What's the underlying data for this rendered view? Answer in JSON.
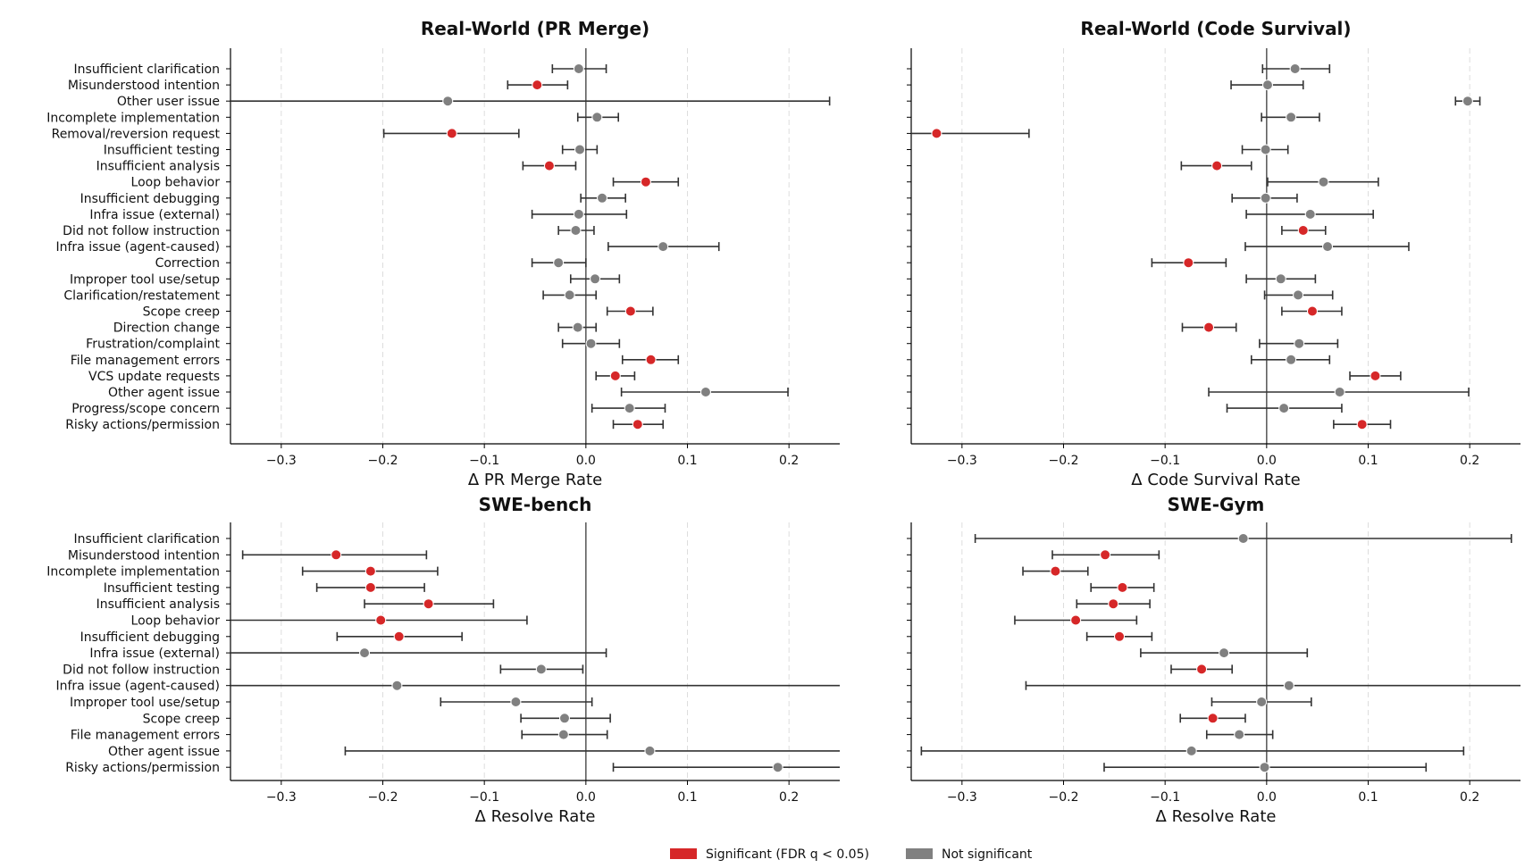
{
  "figure": {
    "colors": {
      "significant": "#d62728",
      "not_significant": "#808080",
      "axis": "#000000",
      "errbar": "#333333",
      "grid": "#dddddd"
    }
  },
  "legend": {
    "entries": [
      {
        "label": "Significant (FDR q < 0.05)",
        "color": "#d62728"
      },
      {
        "label": "Not significant",
        "color": "#808080"
      }
    ],
    "placement": "bottom-center"
  },
  "chart_data": [
    {
      "type": "scatter",
      "title": "Real-World (PR Merge)",
      "xlabel": "Δ PR Merge Rate",
      "xlim": [
        -0.35,
        0.25
      ],
      "xticks": [
        -0.3,
        -0.2,
        -0.1,
        0.0,
        0.1,
        0.2
      ],
      "xtick_labels": [
        "−0.3",
        "−0.2",
        "−0.1",
        "0.0",
        "0.1",
        "0.2"
      ],
      "grid": "vertical dashed",
      "categories": [
        "Insufficient clarification",
        "Misunderstood intention",
        "Other user issue",
        "Incomplete implementation",
        "Removal/reversion request",
        "Insufficient testing",
        "Insufficient analysis",
        "Loop behavior",
        "Insufficient debugging",
        "Infra issue (external)",
        "Did not follow instruction",
        "Infra issue (agent-caused)",
        "Correction",
        "Improper tool use/setup",
        "Clarification/restatement",
        "Scope creep",
        "Direction change",
        "Frustration/complaint",
        "File management errors",
        "VCS update requests",
        "Other agent issue",
        "Progress/scope concern",
        "Risky actions/permission"
      ],
      "values": [
        -0.007,
        -0.048,
        -0.136,
        0.011,
        -0.132,
        -0.006,
        -0.036,
        0.059,
        0.016,
        -0.007,
        -0.01,
        0.076,
        -0.027,
        0.009,
        -0.016,
        0.044,
        -0.008,
        0.005,
        0.064,
        0.029,
        0.118,
        0.043,
        0.051
      ],
      "ci_low": [
        -0.033,
        -0.077,
        -0.36,
        -0.008,
        -0.199,
        -0.023,
        -0.062,
        0.027,
        -0.005,
        -0.053,
        -0.027,
        0.022,
        -0.053,
        -0.015,
        -0.042,
        0.021,
        -0.027,
        -0.023,
        0.036,
        0.01,
        0.035,
        0.006,
        0.027
      ],
      "ci_high": [
        0.02,
        -0.018,
        0.24,
        0.032,
        -0.066,
        0.011,
        -0.01,
        0.091,
        0.039,
        0.04,
        0.008,
        0.131,
        0.0,
        0.033,
        0.01,
        0.066,
        0.01,
        0.033,
        0.091,
        0.048,
        0.199,
        0.078,
        0.076
      ],
      "significant": [
        false,
        true,
        false,
        false,
        true,
        false,
        true,
        true,
        false,
        false,
        false,
        false,
        false,
        false,
        false,
        true,
        false,
        false,
        true,
        true,
        false,
        false,
        true
      ]
    },
    {
      "type": "scatter",
      "title": "Real-World (Code Survival)",
      "xlabel": "Δ Code Survival Rate",
      "xlim": [
        -0.35,
        0.25
      ],
      "xticks": [
        -0.3,
        -0.2,
        -0.1,
        0.0,
        0.1,
        0.2
      ],
      "xtick_labels": [
        "−0.3",
        "−0.2",
        "−0.1",
        "0.0",
        "0.1",
        "0.2"
      ],
      "grid": "vertical dashed",
      "categories": [
        "Insufficient clarification",
        "Misunderstood intention",
        "Other user issue",
        "Incomplete implementation",
        "Removal/reversion request",
        "Insufficient testing",
        "Insufficient analysis",
        "Loop behavior",
        "Insufficient debugging",
        "Infra issue (external)",
        "Did not follow instruction",
        "Infra issue (agent-caused)",
        "Correction",
        "Improper tool use/setup",
        "Clarification/restatement",
        "Scope creep",
        "Direction change",
        "Frustration/complaint",
        "File management errors",
        "VCS update requests",
        "Other agent issue",
        "Progress/scope concern",
        "Risky actions/permission"
      ],
      "values": [
        0.028,
        0.001,
        0.198,
        0.024,
        -0.325,
        -0.001,
        -0.049,
        0.056,
        -0.001,
        0.043,
        0.036,
        0.06,
        -0.077,
        0.014,
        0.031,
        0.045,
        -0.057,
        0.032,
        0.024,
        0.107,
        0.072,
        0.017,
        0.094
      ],
      "ci_low": [
        -0.004,
        -0.035,
        0.186,
        -0.005,
        -0.36,
        -0.024,
        -0.084,
        0.001,
        -0.034,
        -0.02,
        0.015,
        -0.021,
        -0.113,
        -0.02,
        -0.002,
        0.015,
        -0.083,
        -0.007,
        -0.015,
        0.082,
        -0.057,
        -0.039,
        0.066
      ],
      "ci_high": [
        0.062,
        0.036,
        0.21,
        0.052,
        -0.234,
        0.021,
        -0.015,
        0.11,
        0.03,
        0.105,
        0.058,
        0.14,
        -0.04,
        0.048,
        0.065,
        0.074,
        -0.03,
        0.07,
        0.062,
        0.132,
        0.199,
        0.074,
        0.122
      ],
      "significant": [
        false,
        false,
        false,
        false,
        true,
        false,
        true,
        false,
        false,
        false,
        true,
        false,
        true,
        false,
        false,
        true,
        true,
        false,
        false,
        true,
        false,
        false,
        true
      ]
    },
    {
      "type": "scatter",
      "title": "SWE-bench",
      "xlabel": "Δ Resolve Rate",
      "xlim": [
        -0.35,
        0.25
      ],
      "xticks": [
        -0.3,
        -0.2,
        -0.1,
        0.0,
        0.1,
        0.2
      ],
      "xtick_labels": [
        "−0.3",
        "−0.2",
        "−0.1",
        "0.0",
        "0.1",
        "0.2"
      ],
      "grid": "vertical dashed",
      "categories": [
        "Insufficient clarification",
        "Misunderstood intention",
        "Incomplete implementation",
        "Insufficient testing",
        "Insufficient analysis",
        "Loop behavior",
        "Insufficient debugging",
        "Infra issue (external)",
        "Did not follow instruction",
        "Infra issue (agent-caused)",
        "Improper tool use/setup",
        "Scope creep",
        "File management errors",
        "Other agent issue",
        "Risky actions/permission"
      ],
      "values": [
        null,
        -0.246,
        -0.212,
        -0.212,
        -0.155,
        -0.202,
        -0.184,
        -0.218,
        -0.044,
        -0.186,
        -0.069,
        -0.021,
        -0.022,
        0.063,
        0.189
      ],
      "ci_low": [
        null,
        -0.338,
        -0.279,
        -0.265,
        -0.218,
        -0.36,
        -0.245,
        -0.36,
        -0.084,
        -0.36,
        -0.143,
        -0.064,
        -0.063,
        -0.237,
        0.027
      ],
      "ci_high": [
        null,
        -0.157,
        -0.146,
        -0.159,
        -0.091,
        -0.058,
        -0.122,
        0.02,
        -0.003,
        0.26,
        0.006,
        0.024,
        0.021,
        0.26,
        0.26
      ],
      "significant": [
        false,
        true,
        true,
        true,
        true,
        true,
        true,
        false,
        false,
        false,
        false,
        false,
        false,
        false,
        false
      ]
    },
    {
      "type": "scatter",
      "title": "SWE-Gym",
      "xlabel": "Δ Resolve Rate",
      "xlim": [
        -0.35,
        0.25
      ],
      "xticks": [
        -0.3,
        -0.2,
        -0.1,
        0.0,
        0.1,
        0.2
      ],
      "xtick_labels": [
        "−0.3",
        "−0.2",
        "−0.1",
        "0.0",
        "0.1",
        "0.2"
      ],
      "grid": "vertical dashed",
      "categories": [
        "Insufficient clarification",
        "Misunderstood intention",
        "Incomplete implementation",
        "Insufficient testing",
        "Insufficient analysis",
        "Loop behavior",
        "Insufficient debugging",
        "Infra issue (external)",
        "Did not follow instruction",
        "Infra issue (agent-caused)",
        "Improper tool use/setup",
        "Scope creep",
        "File management errors",
        "Other agent issue",
        "Risky actions/permission"
      ],
      "values": [
        -0.023,
        -0.159,
        -0.208,
        -0.142,
        -0.151,
        -0.188,
        -0.145,
        -0.042,
        -0.064,
        0.022,
        -0.005,
        -0.053,
        -0.027,
        -0.074,
        -0.002
      ],
      "ci_low": [
        -0.287,
        -0.211,
        -0.24,
        -0.173,
        -0.187,
        -0.248,
        -0.177,
        -0.124,
        -0.094,
        -0.237,
        -0.054,
        -0.085,
        -0.059,
        -0.34,
        -0.16
      ],
      "ci_high": [
        0.241,
        -0.106,
        -0.176,
        -0.111,
        -0.115,
        -0.128,
        -0.113,
        0.04,
        -0.034,
        0.26,
        0.044,
        -0.021,
        0.006,
        0.194,
        0.157
      ],
      "significant": [
        false,
        true,
        true,
        true,
        true,
        true,
        true,
        false,
        true,
        false,
        false,
        true,
        false,
        false,
        false
      ]
    }
  ]
}
